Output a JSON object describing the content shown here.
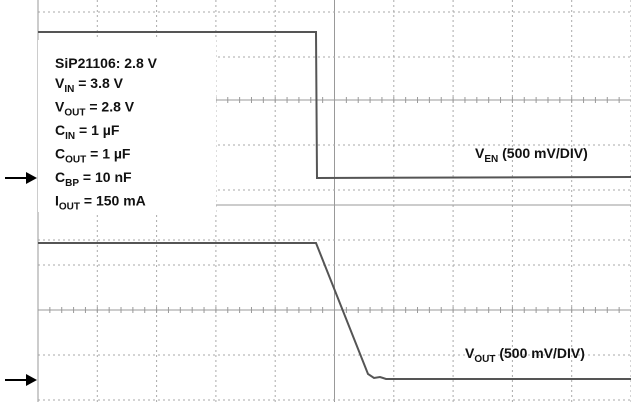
{
  "legend": {
    "title": "SiP21106: 2.8 V",
    "lines": [
      {
        "symbol": "V",
        "sub": "IN",
        "text": " = 3.8 V"
      },
      {
        "symbol": "V",
        "sub": "OUT",
        "text": " = 2.8 V"
      },
      {
        "symbol": "C",
        "sub": "IN",
        "text": " = 1 µF"
      },
      {
        "symbol": "C",
        "sub": "OUT",
        "text": " = 1 µF"
      },
      {
        "symbol": "C",
        "sub": "BP",
        "text": " = 10 nF"
      },
      {
        "symbol": "I",
        "sub": "OUT",
        "text": " = 150 mA"
      }
    ]
  },
  "traces": [
    {
      "symbol": "V",
      "sub": "EN",
      "text": " (500 mV/DIV)"
    },
    {
      "symbol": "V",
      "sub": "OUT",
      "text": " (500 mV/DIV)"
    }
  ]
}
